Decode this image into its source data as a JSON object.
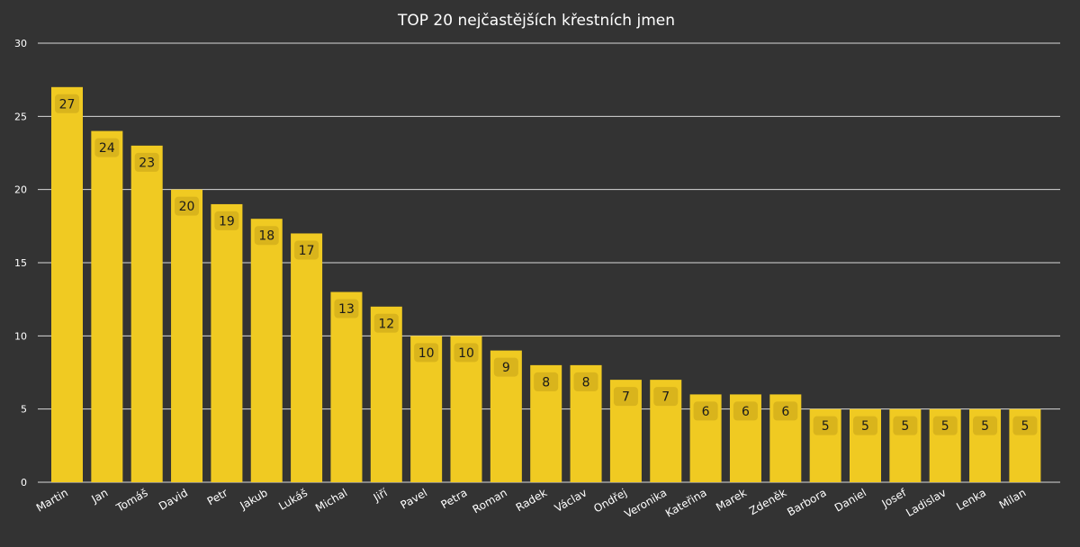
{
  "chart_data": {
    "type": "bar",
    "title": "TOP 20 nejčastějších křestních jmen",
    "categories": [
      "Martin",
      "Jan",
      "Tomáš",
      "David",
      "Petr",
      "Jakub",
      "Lukáš",
      "Michal",
      "Jiří",
      "Pavel",
      "Petra",
      "Roman",
      "Radek",
      "Václav",
      "Ondřej",
      "Veronika",
      "Kateřina",
      "Marek",
      "Zdeněk",
      "Barbora",
      "Daniel",
      "Josef",
      "Ladislav",
      "Lenka",
      "Milan"
    ],
    "values": [
      27,
      24,
      23,
      20,
      19,
      18,
      17,
      13,
      12,
      10,
      10,
      9,
      8,
      8,
      7,
      7,
      6,
      6,
      6,
      5,
      5,
      5,
      5,
      5,
      5
    ],
    "ylim": [
      0,
      30
    ],
    "yticks": [
      0,
      5,
      10,
      15,
      20,
      25,
      30
    ],
    "xlabel": "",
    "ylabel": "",
    "grid": true,
    "legend": "none",
    "colors": {
      "background": "#333333",
      "bar": "#F0CA22",
      "label_box": "#D9B41C",
      "label_text": "#1a1a1a",
      "grid": "#d8d8d8",
      "text": "#ffffff"
    }
  }
}
